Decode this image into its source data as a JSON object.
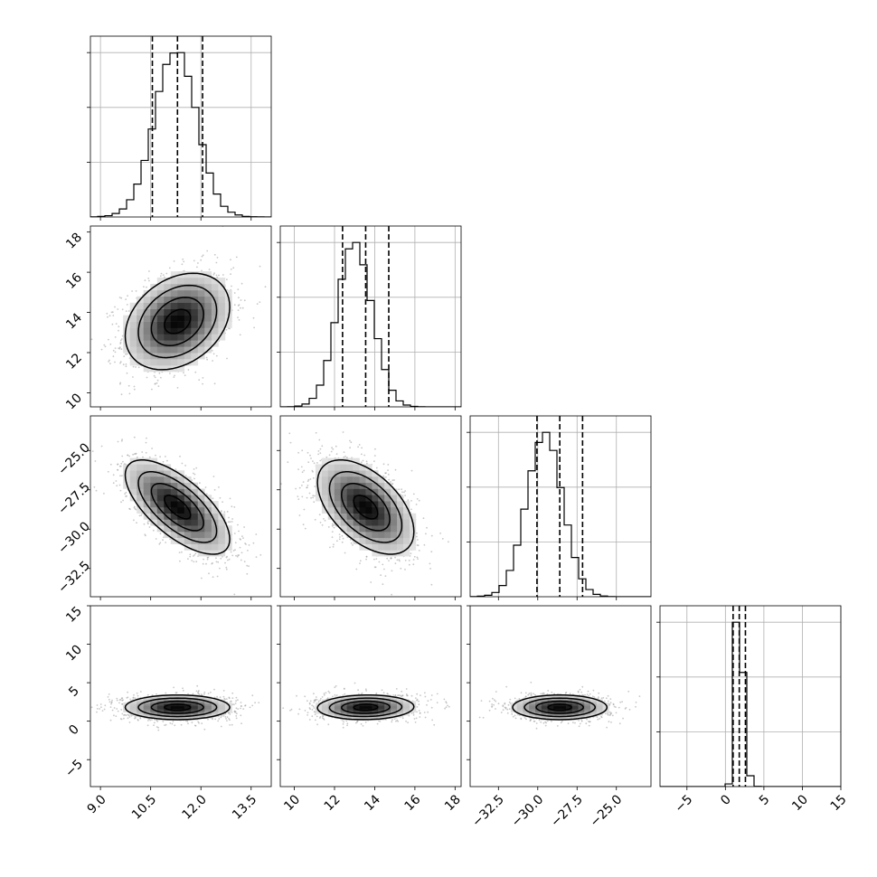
{
  "chart_data": {
    "type": "corner",
    "title": "",
    "variables": [
      {
        "xlim": [
          8.7,
          14.1
        ],
        "ticks": [
          9.0,
          10.5,
          12.0,
          13.5
        ],
        "tick_labels": [
          "9.0",
          "10.5",
          "12.0",
          "13.5"
        ],
        "mean": 11.3,
        "sd": 0.78,
        "quantiles": [
          10.55,
          11.3,
          12.05
        ]
      },
      {
        "xlim": [
          9.3,
          18.3
        ],
        "ticks": [
          10,
          12,
          14,
          16,
          18
        ],
        "tick_labels": [
          "10",
          "12",
          "14",
          "16",
          "18"
        ],
        "mean": 13.55,
        "sd": 1.2,
        "quantiles": [
          12.4,
          13.55,
          14.7
        ]
      },
      {
        "xlim": [
          -34.3,
          -22.8
        ],
        "ticks": [
          -32.5,
          -30.0,
          -27.5,
          -25.0
        ],
        "tick_labels": [
          "−32.5",
          "−30.0",
          "−27.5",
          "−25.0"
        ],
        "mean": -28.6,
        "sd": 1.5,
        "quantiles": [
          -30.05,
          -28.6,
          -27.15
        ]
      },
      {
        "xlim": [
          -8.5,
          15.0
        ],
        "ticks": [
          -5,
          0,
          5,
          10,
          15
        ],
        "tick_labels": [
          "−5",
          "0",
          "5",
          "10",
          "15"
        ],
        "mean": 1.8,
        "sd": 0.8,
        "quantiles": [
          1.0,
          1.8,
          2.6
        ]
      }
    ],
    "histograms": [
      {
        "variable": 0,
        "counts": [
          1,
          4,
          9,
          24,
          55,
          118,
          225,
          387,
          602,
          859,
          1044,
          1122,
          1125,
          963,
          750,
          495,
          301,
          157,
          73,
          33,
          14,
          4,
          2,
          1,
          0
        ]
      },
      {
        "variable": 1,
        "counts": [
          0,
          1,
          5,
          17,
          52,
          132,
          282,
          512,
          776,
          961,
          1000,
          864,
          647,
          415,
          227,
          101,
          36,
          11,
          3,
          1,
          0,
          0,
          0,
          0,
          0
        ]
      },
      {
        "variable": 2,
        "counts": [
          1,
          4,
          10,
          29,
          76,
          179,
          351,
          596,
          857,
          1050,
          1119,
          996,
          743,
          488,
          267,
          122,
          49,
          16,
          5,
          1,
          0,
          0,
          0,
          0,
          0
        ]
      },
      {
        "variable": 3,
        "counts": [
          0,
          0,
          0,
          0,
          0,
          0,
          0,
          0,
          0,
          29,
          1800,
          1250,
          119,
          3,
          0,
          0,
          0,
          0,
          0,
          0,
          0,
          0,
          0,
          0,
          0
        ]
      }
    ],
    "correlations": {
      "1-0": 0.3,
      "2-0": -0.68,
      "2-1": -0.52,
      "3-0": 0.0,
      "3-1": 0.05,
      "3-2": 0.0
    },
    "grid": true,
    "contours": true,
    "quantile_lines": "dashed"
  }
}
